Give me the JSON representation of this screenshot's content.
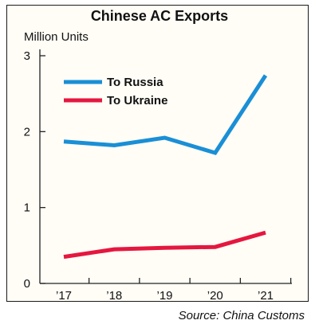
{
  "chart_data": {
    "type": "line",
    "title": "Chinese AC Exports",
    "ylabel": "Million Units",
    "categories": [
      "’17",
      "’18",
      "’19",
      "’20",
      "’21"
    ],
    "ylim": [
      0,
      3
    ],
    "yticks": [
      0,
      1,
      2,
      3
    ],
    "grid": false,
    "legend": "top-left",
    "series": [
      {
        "name": "To Russia",
        "color": "#1a8fd6",
        "values": [
          1.87,
          1.82,
          1.92,
          1.72,
          2.74
        ]
      },
      {
        "name": "To Ukraine",
        "color": "#e5173f",
        "values": [
          0.35,
          0.45,
          0.47,
          0.48,
          0.67
        ]
      }
    ]
  },
  "source": "Source: China Customs"
}
